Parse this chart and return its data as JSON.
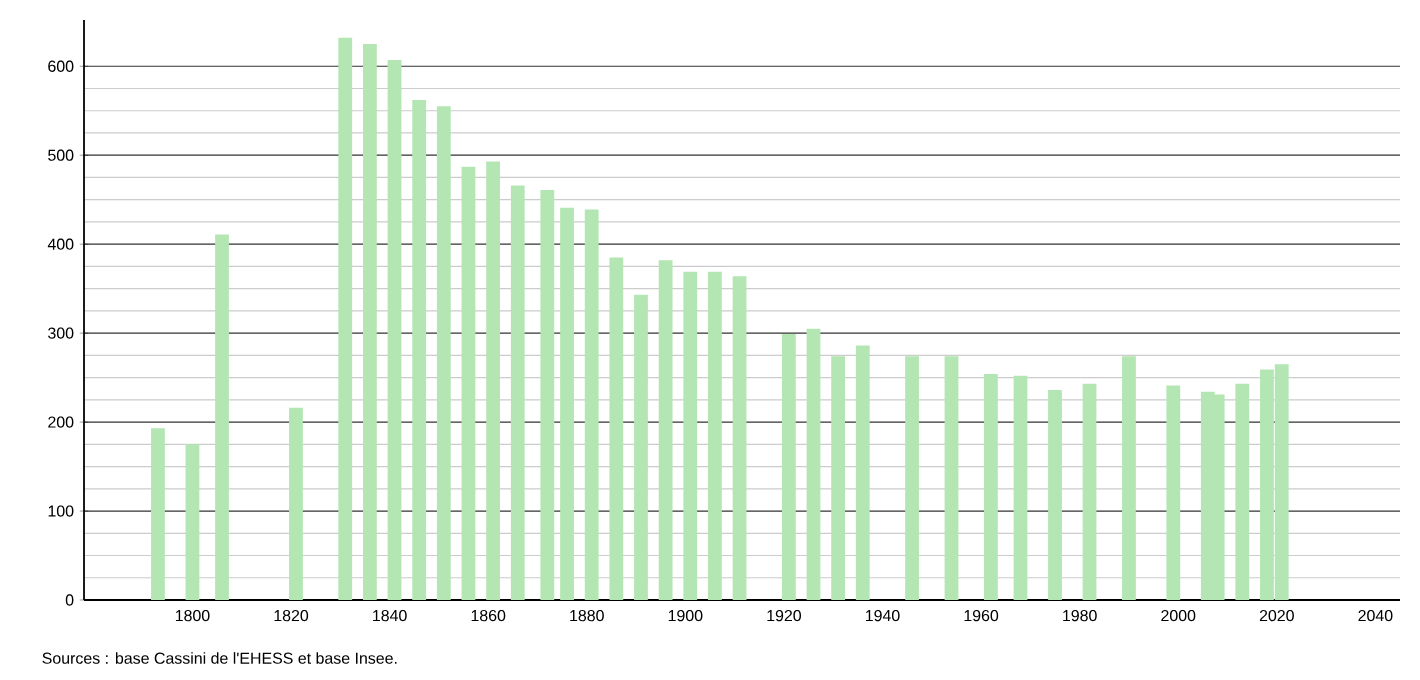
{
  "chart_data": {
    "type": "bar",
    "x": [
      1793,
      1800,
      1806,
      1821,
      1831,
      1836,
      1841,
      1846,
      1851,
      1856,
      1861,
      1866,
      1872,
      1876,
      1881,
      1886,
      1891,
      1896,
      1901,
      1906,
      1911,
      1921,
      1926,
      1931,
      1936,
      1946,
      1954,
      1962,
      1968,
      1975,
      1982,
      1990,
      1999,
      2006,
      2008,
      2013,
      2018,
      2021
    ],
    "values": [
      193,
      175,
      411,
      216,
      632,
      625,
      607,
      562,
      555,
      487,
      493,
      466,
      461,
      441,
      439,
      385,
      343,
      382,
      369,
      369,
      364,
      299,
      305,
      274,
      286,
      274,
      274,
      254,
      252,
      236,
      243,
      274,
      241,
      234,
      231,
      243,
      259,
      265
    ],
    "color": "#b3e6b3",
    "xlim": [
      1778,
      2045
    ],
    "xticks": [
      1800,
      1820,
      1840,
      1860,
      1880,
      1900,
      1920,
      1940,
      1960,
      1980,
      2000,
      2020,
      2040
    ],
    "ylim": [
      0,
      652
    ],
    "yticks": [
      0,
      100,
      200,
      300,
      400,
      500,
      600
    ],
    "grid": "y",
    "annotations": [
      "Sources : base Cassini de l'EHESS et base Insee."
    ]
  }
}
